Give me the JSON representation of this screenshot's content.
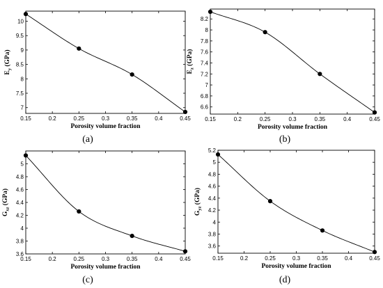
{
  "chart_data": [
    {
      "type": "line",
      "caption": "(a)",
      "xlabel": "Porosity volume fraction",
      "ylabel": "E",
      "ylabel_sub": "y",
      "ylabel_unit": " (GPa)",
      "xlim": [
        0.15,
        0.45
      ],
      "ylim": [
        6.8,
        10.35
      ],
      "xticks": [
        "0.15",
        "0.2",
        "0.25",
        "0.3",
        "0.35",
        "0.4",
        "0.45"
      ],
      "yticks": [
        "7",
        "7.5",
        "8",
        "8.5",
        "9",
        "9.5",
        "10"
      ],
      "x": [
        0.15,
        0.25,
        0.35,
        0.45
      ],
      "y": [
        10.25,
        9.05,
        8.15,
        6.85
      ]
    },
    {
      "type": "line",
      "caption": "(b)",
      "xlabel": "Porosity volume fraction",
      "ylabel": "E",
      "ylabel_sub": "z",
      "ylabel_unit": " (GPa)",
      "xlim": [
        0.15,
        0.45
      ],
      "ylim": [
        6.47,
        8.38
      ],
      "xticks": [
        "0.15",
        "0.2",
        "0.25",
        "0.3",
        "0.35",
        "0.4",
        "0.45"
      ],
      "yticks": [
        "6.6",
        "6.8",
        "7",
        "7.2",
        "7.4",
        "7.6",
        "7.8",
        "8",
        "8.2"
      ],
      "x": [
        0.15,
        0.25,
        0.35,
        0.45
      ],
      "y": [
        8.33,
        7.96,
        7.2,
        6.5
      ]
    },
    {
      "type": "line",
      "caption": "(c)",
      "xlabel": "Porosity volume fraction",
      "ylabel": "G",
      "ylabel_sub": "xz",
      "ylabel_unit": " (GPa)",
      "xlim": [
        0.15,
        0.45
      ],
      "ylim": [
        3.6,
        5.2
      ],
      "xticks": [
        "0.15",
        "0.2",
        "0.25",
        "0.3",
        "0.35",
        "0.4",
        "0.45"
      ],
      "yticks": [
        "3.6",
        "3.8",
        "4",
        "4.2",
        "4.4",
        "4.6",
        "4.8",
        "5"
      ],
      "x": [
        0.15,
        0.25,
        0.35,
        0.45
      ],
      "y": [
        5.13,
        4.26,
        3.88,
        3.64
      ]
    },
    {
      "type": "line",
      "caption": "(d)",
      "xlabel": "Porosity volume fraction",
      "ylabel": "G",
      "ylabel_sub": "yz",
      "ylabel_unit": " (GPa)",
      "xlim": [
        0.15,
        0.45
      ],
      "ylim": [
        3.48,
        5.2
      ],
      "xticks": [
        "0.15",
        "0.2",
        "0.25",
        "0.3",
        "0.35",
        "0.4",
        "0.45"
      ],
      "yticks": [
        "3.6",
        "3.8",
        "4",
        "4.2",
        "4.4",
        "4.6",
        "4.8",
        "5",
        "5.2"
      ],
      "x": [
        0.15,
        0.25,
        0.35,
        0.45
      ],
      "y": [
        5.13,
        4.35,
        3.86,
        3.5
      ]
    }
  ]
}
